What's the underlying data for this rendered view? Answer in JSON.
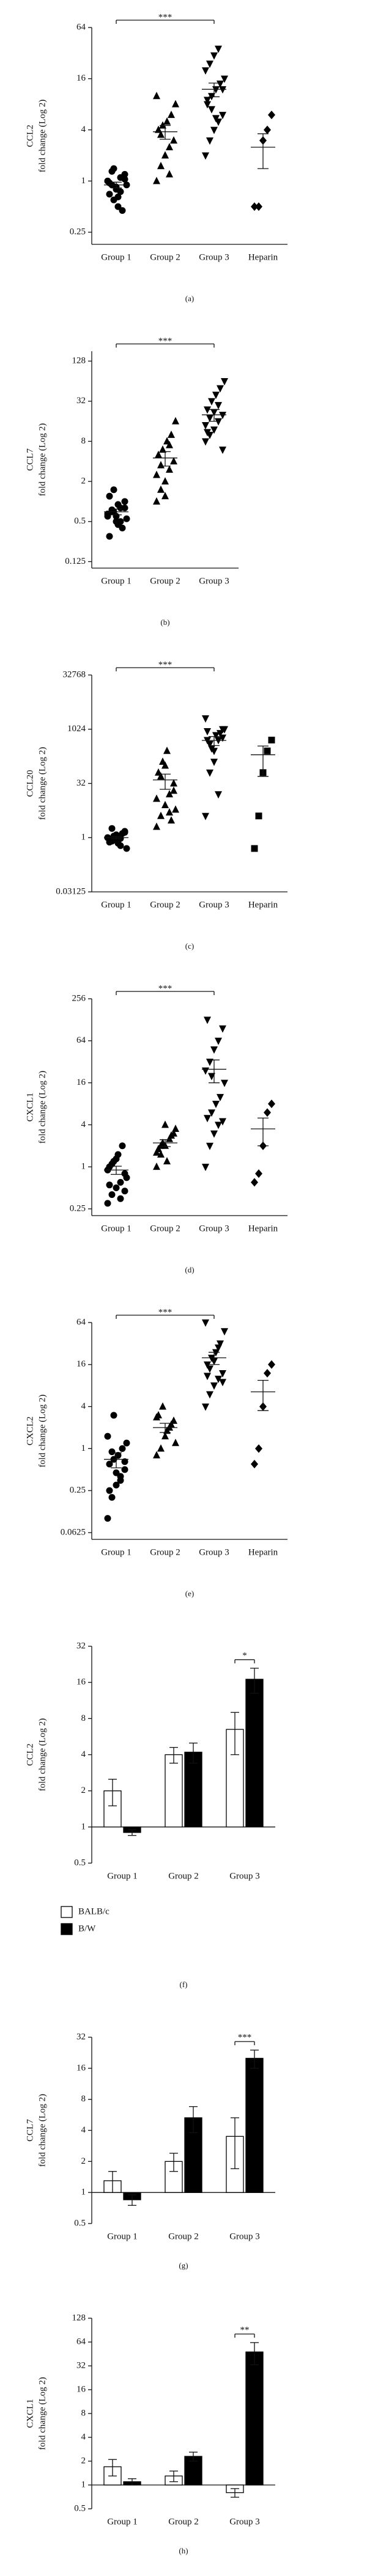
{
  "chart_data": [
    {
      "type": "dot",
      "caption": "(a)",
      "ylabel": [
        "CCL2",
        "fold change (Log 2)"
      ],
      "yscale": "log2",
      "ylim": [
        0.18,
        64
      ],
      "yticks": [
        0.25,
        1,
        4,
        16,
        64
      ],
      "groups": [
        {
          "name": "Group 1",
          "marker": "circle",
          "values": [
            1,
            0.9,
            0.8,
            1.1,
            1.2,
            0.7,
            0.6,
            0.5,
            0.45,
            0.9,
            1,
            1.3,
            0.85,
            0.75,
            1.05,
            0.95,
            1.4,
            0.65
          ],
          "mean": 0.9,
          "sem": 0.07
        },
        {
          "name": "Group 2",
          "marker": "triangle",
          "values": [
            1,
            1.5,
            2,
            2.5,
            3,
            4,
            4.5,
            5,
            6,
            8,
            10,
            3.5,
            2,
            1.2
          ],
          "mean": 3.8,
          "sem": 0.7
        },
        {
          "name": "Group 3",
          "marker": "triangle-down",
          "values": [
            2,
            3,
            4,
            5,
            6,
            8,
            10,
            12,
            14,
            16,
            20,
            24,
            30,
            36,
            12,
            9,
            7,
            5.5
          ],
          "mean": 12,
          "sem": 2.2
        },
        {
          "name": "Heparin",
          "marker": "diamond",
          "values": [
            0.5,
            0.5,
            3,
            4,
            6
          ],
          "mean": 2.5,
          "sem": 1.1
        }
      ],
      "significance": {
        "label": "***",
        "between": [
          "Group 1",
          "Group 3"
        ]
      }
    },
    {
      "type": "dot",
      "caption": "(b)",
      "ylabel": [
        "CCL7",
        "fold change (Log 2)"
      ],
      "yscale": "log2",
      "ylim": [
        0.1,
        180
      ],
      "yticks": [
        0.125,
        0.5,
        2,
        8,
        32,
        128
      ],
      "groups": [
        {
          "name": "Group 1",
          "marker": "circle",
          "values": [
            0.6,
            0.7,
            0.5,
            0.8,
            1,
            1.2,
            1.5,
            0.9,
            0.4,
            0.55,
            0.65,
            0.75,
            0.6,
            0.5,
            0.8,
            0.3,
            0.7,
            0.45
          ],
          "mean": 0.7,
          "sem": 0.07
        },
        {
          "name": "Group 2",
          "marker": "triangle",
          "values": [
            1,
            1.5,
            2,
            3,
            4,
            5,
            6,
            8,
            10,
            16,
            2.5,
            3.5,
            1.2,
            7
          ],
          "mean": 4.5,
          "sem": 1.1
        },
        {
          "name": "Group 3",
          "marker": "triangle-down",
          "values": [
            8,
            10,
            12,
            16,
            20,
            24,
            32,
            40,
            50,
            64,
            14,
            18,
            22,
            28,
            6,
            11
          ],
          "mean": 20,
          "sem": 4
        }
      ],
      "significance": {
        "label": "***",
        "between": [
          "Group 1",
          "Group 3"
        ]
      }
    },
    {
      "type": "dot",
      "caption": "(c)",
      "ylabel": [
        "CCL20",
        "fold change (Log 2)"
      ],
      "yscale": "log2",
      "ylim": [
        0.03125,
        32768
      ],
      "yticks": [
        0.03125,
        1,
        32,
        1024,
        32768
      ],
      "groups": [
        {
          "name": "Group 1",
          "marker": "circle",
          "values": [
            1,
            0.8,
            1.2,
            0.6,
            1.5,
            0.9,
            1.1,
            0.7,
            1.3,
            0.5,
            1,
            1.8,
            0.85,
            0.95,
            1.4,
            0.75,
            1.05
          ],
          "mean": 1,
          "sem": 0.08
        },
        {
          "name": "Group 2",
          "marker": "triangle",
          "values": [
            2,
            4,
            8,
            16,
            32,
            64,
            128,
            256,
            3,
            6,
            12,
            50,
            100,
            5,
            20
          ],
          "mean": 40,
          "sem": 18
        },
        {
          "name": "Group 3",
          "marker": "triangle-down",
          "values": [
            4,
            64,
            256,
            512,
            1024,
            512,
            300,
            700,
            800,
            1024,
            2048,
            400,
            128,
            16,
            600,
            900
          ],
          "mean": 500,
          "sem": 140
        },
        {
          "name": "Heparin",
          "marker": "square",
          "values": [
            0.5,
            4,
            64,
            256,
            512
          ],
          "mean": 200,
          "sem": 150
        }
      ],
      "significance": {
        "label": "***",
        "between": [
          "Group 1",
          "Group 3"
        ]
      }
    },
    {
      "type": "dot",
      "caption": "(d)",
      "ylabel": [
        "CXCL1",
        "fold change (Log 2)"
      ],
      "yscale": "log2",
      "ylim": [
        0.2,
        256
      ],
      "yticks": [
        0.25,
        1,
        4,
        16,
        64,
        256
      ],
      "groups": [
        {
          "name": "Group 1",
          "marker": "circle",
          "values": [
            0.3,
            0.4,
            0.5,
            0.6,
            0.8,
            1,
            1.2,
            1.5,
            2,
            0.7,
            0.9,
            1.1,
            1.3,
            0.35,
            0.45,
            0.55
          ],
          "mean": 0.9,
          "sem": 0.12
        },
        {
          "name": "Group 2",
          "marker": "triangle",
          "values": [
            1,
            1.5,
            2,
            2.5,
            3,
            1.8,
            2.2,
            1.2,
            2.8,
            3.5,
            1.6,
            2,
            4
          ],
          "mean": 2.2,
          "sem": 0.25
        },
        {
          "name": "Group 3",
          "marker": "triangle-down",
          "values": [
            1,
            2,
            3,
            4,
            4.5,
            5,
            6,
            8,
            10,
            16,
            24,
            32,
            48,
            64,
            96,
            128,
            20
          ],
          "mean": 25,
          "sem": 9
        },
        {
          "name": "Heparin",
          "marker": "diamond",
          "values": [
            0.6,
            0.8,
            2,
            6,
            8
          ],
          "mean": 3.5,
          "sem": 1.5
        }
      ],
      "significance": {
        "label": "***",
        "between": [
          "Group 1",
          "Group 3"
        ]
      }
    },
    {
      "type": "dot",
      "caption": "(e)",
      "ylabel": [
        "CXCL2",
        "fold change (Log 2)"
      ],
      "yscale": "log2",
      "ylim": [
        0.05,
        64
      ],
      "yticks": [
        0.0625,
        0.25,
        1,
        4,
        16,
        64
      ],
      "groups": [
        {
          "name": "Group 1",
          "marker": "circle",
          "values": [
            0.1,
            0.2,
            0.3,
            0.4,
            0.5,
            0.6,
            0.7,
            0.8,
            1,
            1.2,
            1.5,
            0.9,
            0.45,
            0.35,
            0.65,
            0.25,
            3
          ],
          "mean": 0.7,
          "sem": 0.17
        },
        {
          "name": "Group 2",
          "marker": "triangle",
          "values": [
            0.8,
            1,
            1.5,
            2,
            2.5,
            3,
            4,
            1.8,
            2.2,
            1.2,
            2.8
          ],
          "mean": 2,
          "sem": 0.3
        },
        {
          "name": "Group 3",
          "marker": "triangle-down",
          "values": [
            4,
            6,
            8,
            10,
            12,
            16,
            20,
            24,
            32,
            48,
            64,
            14,
            18,
            28,
            9,
            11
          ],
          "mean": 20,
          "sem": 4
        },
        {
          "name": "Heparin",
          "marker": "diamond",
          "values": [
            0.6,
            1,
            4,
            12,
            16
          ],
          "mean": 6.5,
          "sem": 3
        }
      ],
      "significance": {
        "label": "***",
        "between": [
          "Group 1",
          "Group 3"
        ]
      }
    },
    {
      "type": "bar",
      "caption": "(f)",
      "ylabel": [
        "CCL2",
        "fold change (Log 2)"
      ],
      "yscale": "log2",
      "ylim": [
        0.5,
        32
      ],
      "yticks": [
        0.5,
        1,
        2,
        4,
        8,
        16,
        32
      ],
      "legend": true,
      "categories": [
        "Group 1",
        "Group 2",
        "Group 3"
      ],
      "series": [
        {
          "name": "BALB/c",
          "color": "#ffffff",
          "values": [
            2,
            4,
            6.5
          ],
          "errors": [
            0.5,
            0.6,
            2.5
          ]
        },
        {
          "name": "B/W",
          "color": "#000000",
          "values": [
            0.9,
            4.2,
            17
          ],
          "errors": [
            0.05,
            0.8,
            4
          ]
        }
      ],
      "significance": {
        "label": "*",
        "category": "Group 3"
      }
    },
    {
      "type": "bar",
      "caption": "(g)",
      "ylabel": [
        "CCL7",
        "fold change (Log 2)"
      ],
      "yscale": "log2",
      "ylim": [
        0.5,
        32
      ],
      "yticks": [
        0.5,
        1,
        2,
        4,
        8,
        16,
        32
      ],
      "legend": false,
      "categories": [
        "Group 1",
        "Group 2",
        "Group 3"
      ],
      "series": [
        {
          "name": "BALB/c",
          "color": "#ffffff",
          "values": [
            1.3,
            2,
            3.5
          ],
          "errors": [
            0.3,
            0.4,
            1.8
          ]
        },
        {
          "name": "B/W",
          "color": "#000000",
          "values": [
            0.85,
            5.3,
            20
          ],
          "errors": [
            0.1,
            1.5,
            4
          ]
        }
      ],
      "significance": {
        "label": "***",
        "category": "Group 3"
      }
    },
    {
      "type": "bar",
      "caption": "(h)",
      "ylabel": [
        "CXCL1",
        "fold change (Log 2)"
      ],
      "yscale": "log2",
      "ylim": [
        0.5,
        128
      ],
      "yticks": [
        0.5,
        1,
        2,
        4,
        8,
        16,
        32,
        64,
        128
      ],
      "legend": false,
      "categories": [
        "Group 1",
        "Group 2",
        "Group 3"
      ],
      "series": [
        {
          "name": "BALB/c",
          "color": "#ffffff",
          "values": [
            1.7,
            1.3,
            0.8
          ],
          "errors": [
            0.4,
            0.2,
            0.1
          ]
        },
        {
          "name": "B/W",
          "color": "#000000",
          "values": [
            1.1,
            2.3,
            48
          ],
          "errors": [
            0.1,
            0.3,
            15
          ]
        }
      ],
      "significance": {
        "label": "**",
        "category": "Group 3"
      }
    }
  ]
}
